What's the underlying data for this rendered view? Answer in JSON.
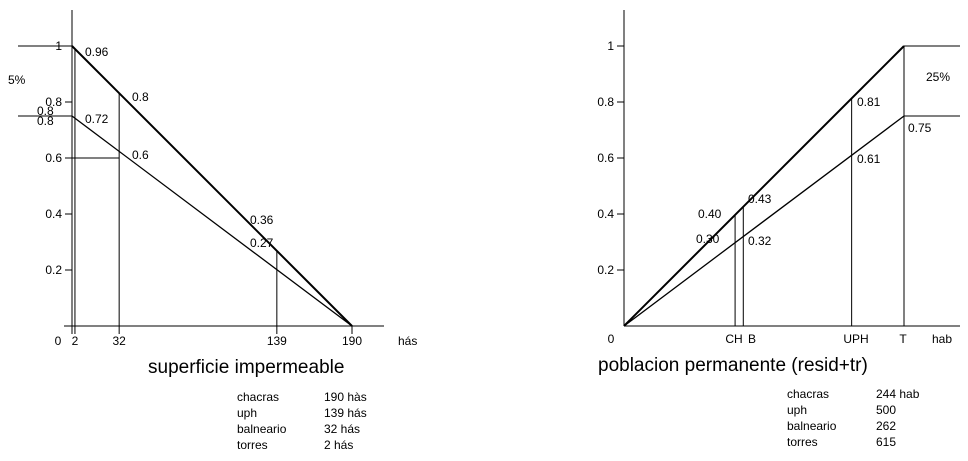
{
  "chart_data": [
    {
      "type": "line",
      "xlabel": "superficie impermeable",
      "xunit": "hás",
      "yticks": [
        "0.2",
        "0.4",
        "0.6",
        "0.8",
        "1"
      ],
      "xticks": [
        "0",
        "2",
        "32",
        "139",
        "190"
      ],
      "ylim": [
        0,
        1
      ],
      "grid": false,
      "series": [
        {
          "values": [
            [
              0,
              1
            ],
            [
              190,
              0
            ]
          ]
        },
        {
          "values": [
            [
              0,
              0.75
            ],
            [
              190,
              0
            ]
          ]
        }
      ],
      "annotations": [
        "5%",
        "0.8",
        "0.96",
        "0.72",
        "0.8",
        "0.6",
        "0.36",
        "0.27"
      ],
      "legend_rows": [
        {
          "name": "chacras",
          "value": "190 hàs"
        },
        {
          "name": "uph",
          "value": "139 hás"
        },
        {
          "name": "balneario",
          "value": "32 hás"
        },
        {
          "name": "torres",
          "value": "2 hás"
        }
      ]
    },
    {
      "type": "line",
      "xlabel": "poblacion permanente (resid+tr)",
      "xunit": "hab",
      "yticks": [
        "0.2",
        "0.4",
        "0.6",
        "0.8",
        "1"
      ],
      "xticks": [
        "0",
        "CH",
        "B",
        "UPH",
        "T"
      ],
      "ylim": [
        0,
        1
      ],
      "grid": false,
      "series": [
        {
          "values": [
            [
              0,
              0
            ],
            [
              615,
              1
            ]
          ]
        },
        {
          "values": [
            [
              0,
              0
            ],
            [
              615,
              0.75
            ]
          ]
        }
      ],
      "annotations": [
        "25%",
        "0.81",
        "0.75",
        "0.61",
        "0.43",
        "0.40",
        "0.30",
        "0.32"
      ],
      "legend_rows": [
        {
          "name": "chacras",
          "value": "244 hab"
        },
        {
          "name": "uph",
          "value": "500"
        },
        {
          "name": "balneario",
          "value": "262"
        },
        {
          "name": "torres",
          "value": "615"
        }
      ]
    }
  ]
}
